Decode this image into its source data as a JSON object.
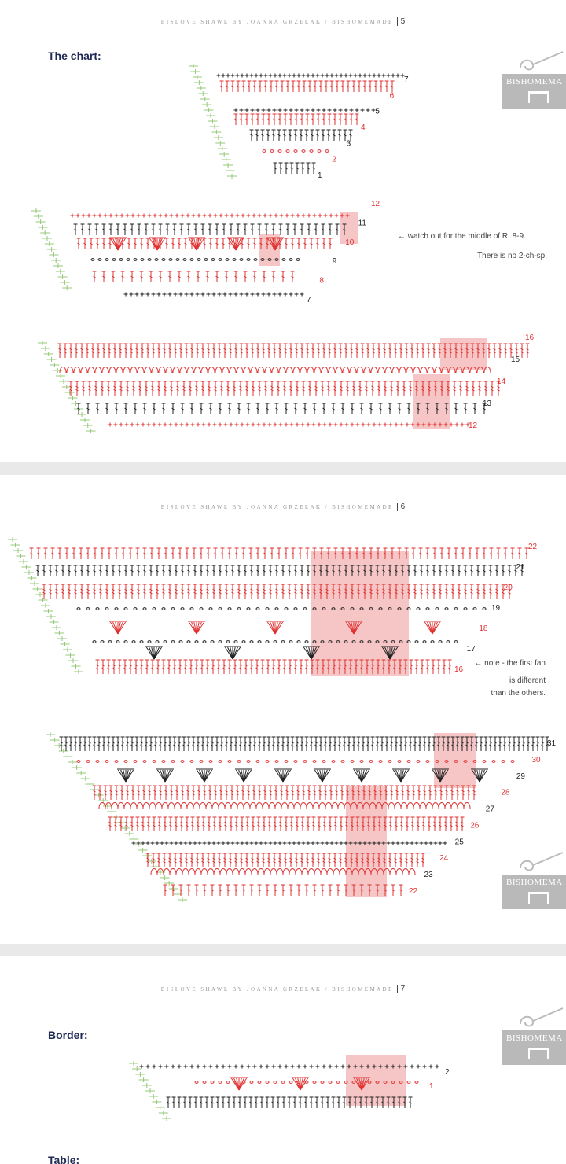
{
  "header": {
    "text": "BISLOVE SHAWL BY JOANNA GRZELAK / BISHOMEMADE",
    "pages": [
      "5",
      "6",
      "7"
    ]
  },
  "page5": {
    "title": "The chart:",
    "note_1": "← watch out for the middle of R. 8-9.",
    "note_2": "There is no 2-ch-sp."
  },
  "page6": {
    "note_1": "← note - the first fan",
    "note_2": "is different",
    "note_3": "than the others."
  },
  "page7": {
    "title": "Border:",
    "next_title": "Table:"
  },
  "logo_text": "BISHOMEMA",
  "rows": {
    "chart1": [
      "1",
      "2",
      "3",
      "4",
      "5",
      "6",
      "7"
    ],
    "chart2": [
      "7",
      "8",
      "9",
      "10",
      "11",
      "12"
    ],
    "chart3": [
      "12",
      "13",
      "14",
      "15",
      "16"
    ],
    "chart4": [
      "16",
      "17",
      "18",
      "19",
      "20",
      "21",
      "22"
    ],
    "chart5": [
      "22",
      "23",
      "24",
      "25",
      "26",
      "27",
      "28",
      "29",
      "30",
      "31"
    ],
    "border": [
      "1",
      "2"
    ]
  },
  "colors": {
    "red": "#e03131",
    "black": "#222222",
    "green": "#7dbb5a",
    "highlight": "#f6c6c6",
    "title": "#1f2a55"
  }
}
